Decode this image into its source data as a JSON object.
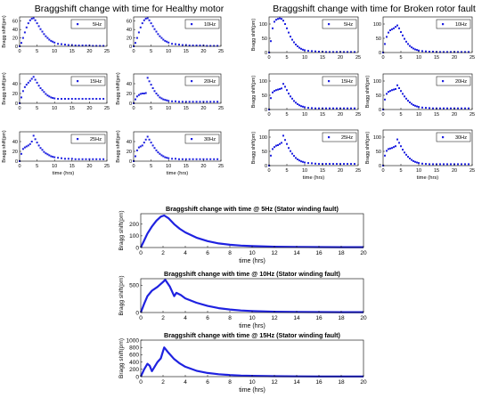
{
  "colors": {
    "series": "#1f22e0",
    "axis": "#000000",
    "legend_border": "#000000",
    "background": "#ffffff"
  },
  "groups": {
    "healthy": {
      "title": "Braggshift change with time for Healthy motor"
    },
    "broken": {
      "title": "Braggshift change with time for Broken rotor fault"
    }
  },
  "chart_data": [
    {
      "type": "scatter",
      "group": "healthy",
      "legend": "5Hz",
      "ylabel": "Bragg shift(pm)",
      "xlabel": "",
      "xlim": [
        0,
        25
      ],
      "ylim": [
        0,
        70
      ],
      "xticks": [
        0,
        5,
        10,
        15,
        20,
        25
      ],
      "yticks": [
        0,
        20,
        40,
        60
      ],
      "x": [
        0,
        0.5,
        1,
        1.5,
        2,
        2.5,
        3,
        3.5,
        4,
        4.5,
        5,
        5.5,
        6,
        6.5,
        7,
        7.5,
        8,
        8.5,
        9,
        9.5,
        10,
        11,
        12,
        13,
        14,
        15,
        16,
        17,
        18,
        19,
        20,
        21,
        22,
        23,
        24
      ],
      "y": [
        0,
        8,
        20,
        33,
        45,
        55,
        62,
        66,
        67,
        62,
        55,
        48,
        41,
        35,
        29,
        24,
        20,
        16,
        13,
        11,
        9,
        6,
        5,
        4,
        3,
        3,
        2,
        2,
        2,
        2,
        2,
        1,
        1,
        1,
        1
      ]
    },
    {
      "type": "scatter",
      "group": "healthy",
      "legend": "10Hz",
      "ylabel": "",
      "xlabel": "",
      "xlim": [
        0,
        25
      ],
      "ylim": [
        0,
        70
      ],
      "xticks": [
        0,
        5,
        10,
        15,
        20,
        25
      ],
      "yticks": [
        0,
        20,
        40,
        60
      ],
      "x": [
        0,
        0.5,
        1,
        1.5,
        2,
        2.5,
        3,
        3.5,
        4,
        4.5,
        5,
        5.5,
        6,
        6.5,
        7,
        7.5,
        8,
        8.5,
        9,
        9.5,
        10,
        11,
        12,
        13,
        14,
        15,
        16,
        17,
        18,
        19,
        20,
        21,
        22,
        23,
        24
      ],
      "y": [
        0,
        8,
        20,
        33,
        45,
        55,
        62,
        66,
        67,
        62,
        55,
        48,
        41,
        35,
        29,
        24,
        20,
        16,
        13,
        11,
        9,
        6,
        5,
        4,
        3,
        3,
        2,
        2,
        2,
        2,
        2,
        1,
        1,
        1,
        1
      ]
    },
    {
      "type": "scatter",
      "group": "healthy",
      "legend": "15Hz",
      "ylabel": "Bragg shift(pm)",
      "xlabel": "",
      "xlim": [
        0,
        25
      ],
      "ylim": [
        0,
        60
      ],
      "xticks": [
        0,
        5,
        10,
        15,
        20,
        25
      ],
      "yticks": [
        0,
        20,
        40
      ],
      "x": [
        0,
        0.5,
        1,
        1.5,
        2,
        2.5,
        3,
        3.5,
        4,
        4.5,
        5,
        5.5,
        6,
        6.5,
        7,
        7.5,
        8,
        8.5,
        9,
        9.5,
        10,
        11,
        12,
        13,
        14,
        15,
        16,
        17,
        18,
        19,
        20,
        21,
        22,
        23,
        24
      ],
      "y": [
        0,
        12,
        25,
        33,
        38,
        42,
        46,
        50,
        54,
        48,
        42,
        36,
        31,
        27,
        23,
        19,
        16,
        14,
        12,
        11,
        10,
        9,
        9,
        9,
        9,
        9,
        9,
        9,
        9,
        9,
        9,
        9,
        9,
        9,
        9
      ]
    },
    {
      "type": "scatter",
      "group": "healthy",
      "legend": "20Hz",
      "ylabel": "Bragg shift(pm)",
      "xlabel": "",
      "xlim": [
        0,
        25
      ],
      "ylim": [
        0,
        60
      ],
      "xticks": [
        0,
        5,
        10,
        15,
        20,
        25
      ],
      "yticks": [
        0,
        20,
        40
      ],
      "x": [
        0,
        0.5,
        1,
        1.5,
        2,
        2.5,
        3,
        3.5,
        4,
        4.5,
        5,
        5.5,
        6,
        6.5,
        7,
        7.5,
        8,
        8.5,
        9,
        9.5,
        10,
        11,
        12,
        13,
        14,
        15,
        16,
        17,
        18,
        19,
        20,
        21,
        22,
        23,
        24
      ],
      "y": [
        0,
        8,
        14,
        17,
        19,
        20,
        20,
        21,
        52,
        45,
        38,
        31,
        25,
        20,
        16,
        12,
        10,
        8,
        7,
        6,
        5,
        4,
        4,
        3,
        3,
        3,
        3,
        3,
        3,
        3,
        3,
        3,
        3,
        3,
        3
      ]
    },
    {
      "type": "scatter",
      "group": "healthy",
      "legend": "25Hz",
      "ylabel": "Bragg shift(pm)",
      "xlabel": "time (hrs)",
      "xlim": [
        0,
        25
      ],
      "ylim": [
        0,
        60
      ],
      "xticks": [
        0,
        5,
        10,
        15,
        20,
        25
      ],
      "yticks": [
        0,
        20,
        40
      ],
      "x": [
        0,
        0.5,
        1,
        1.5,
        2,
        2.5,
        3,
        3.5,
        4,
        4.5,
        5,
        5.5,
        6,
        6.5,
        7,
        7.5,
        8,
        8.5,
        9,
        9.5,
        10,
        11,
        12,
        13,
        14,
        15,
        16,
        17,
        18,
        19,
        20,
        21,
        22,
        23,
        24
      ],
      "y": [
        0,
        15,
        25,
        28,
        30,
        32,
        35,
        40,
        52,
        45,
        38,
        32,
        27,
        23,
        19,
        16,
        14,
        12,
        10,
        9,
        8,
        7,
        6,
        5,
        5,
        5,
        4,
        4,
        4,
        4,
        4,
        4,
        4,
        4,
        4
      ]
    },
    {
      "type": "scatter",
      "group": "healthy",
      "legend": "30Hz",
      "ylabel": "Bragg shift(pm)",
      "xlabel": "time (hrs)",
      "xlim": [
        0,
        25
      ],
      "ylim": [
        0,
        60
      ],
      "xticks": [
        0,
        5,
        10,
        15,
        20,
        25
      ],
      "yticks": [
        0,
        20,
        40
      ],
      "x": [
        0,
        0.5,
        1,
        1.5,
        2,
        2.5,
        3,
        3.5,
        4,
        4.5,
        5,
        5.5,
        6,
        6.5,
        7,
        7.5,
        8,
        8.5,
        9,
        9.5,
        10,
        11,
        12,
        13,
        14,
        15,
        16,
        17,
        18,
        19,
        20,
        21,
        22,
        23,
        24
      ],
      "y": [
        0,
        10,
        22,
        28,
        30,
        32,
        38,
        44,
        50,
        44,
        38,
        32,
        27,
        22,
        18,
        15,
        12,
        10,
        8,
        7,
        6,
        5,
        5,
        4,
        4,
        4,
        4,
        4,
        4,
        4,
        4,
        4,
        4,
        4,
        4
      ]
    },
    {
      "type": "scatter",
      "group": "broken",
      "legend": "5Hz",
      "ylabel": "Bragg shift(pm)",
      "xlabel": "",
      "xlim": [
        0,
        25
      ],
      "ylim": [
        0,
        125
      ],
      "xticks": [
        0,
        5,
        10,
        15,
        20,
        25
      ],
      "yticks": [
        0,
        50,
        100
      ],
      "x": [
        0,
        0.5,
        1,
        1.5,
        2,
        2.5,
        3,
        3.5,
        4,
        4.5,
        5,
        5.5,
        6,
        6.5,
        7,
        7.5,
        8,
        8.5,
        9,
        9.5,
        10,
        11,
        12,
        13,
        14,
        15,
        16,
        17,
        18,
        19,
        20,
        21,
        22,
        23,
        24
      ],
      "y": [
        0,
        40,
        85,
        108,
        115,
        118,
        120,
        118,
        112,
        100,
        85,
        70,
        56,
        45,
        36,
        28,
        22,
        17,
        13,
        10,
        8,
        6,
        5,
        4,
        3,
        3,
        2,
        2,
        2,
        2,
        2,
        2,
        2,
        2,
        2
      ]
    },
    {
      "type": "scatter",
      "group": "broken",
      "legend": "10Hz",
      "ylabel": "",
      "xlabel": "",
      "xlim": [
        0,
        25
      ],
      "ylim": [
        0,
        125
      ],
      "xticks": [
        0,
        5,
        10,
        15,
        20,
        25
      ],
      "yticks": [
        0,
        50,
        100
      ],
      "x": [
        0,
        0.5,
        1,
        1.5,
        2,
        2.5,
        3,
        3.5,
        4,
        4.5,
        5,
        5.5,
        6,
        6.5,
        7,
        7.5,
        8,
        8.5,
        9,
        9.5,
        10,
        11,
        12,
        13,
        14,
        15,
        16,
        17,
        18,
        19,
        20,
        21,
        22,
        23,
        24
      ],
      "y": [
        0,
        30,
        55,
        70,
        78,
        82,
        85,
        90,
        95,
        85,
        72,
        60,
        48,
        38,
        30,
        23,
        18,
        14,
        11,
        9,
        7,
        5,
        4,
        3,
        3,
        2,
        2,
        2,
        2,
        2,
        2,
        2,
        2,
        2,
        2
      ]
    },
    {
      "type": "scatter",
      "group": "broken",
      "legend": "15Hz",
      "ylabel": "Bragg shift(pm)",
      "xlabel": "",
      "xlim": [
        0,
        25
      ],
      "ylim": [
        0,
        125
      ],
      "xticks": [
        0,
        5,
        10,
        15,
        20,
        25
      ],
      "yticks": [
        0,
        50,
        100
      ],
      "x": [
        0,
        0.5,
        1,
        1.5,
        2,
        2.5,
        3,
        3.5,
        4,
        4.5,
        5,
        5.5,
        6,
        6.5,
        7,
        7.5,
        8,
        8.5,
        9,
        9.5,
        10,
        11,
        12,
        13,
        14,
        15,
        16,
        17,
        18,
        19,
        20,
        21,
        22,
        23,
        24
      ],
      "y": [
        0,
        40,
        60,
        65,
        68,
        70,
        72,
        74,
        90,
        80,
        68,
        56,
        46,
        38,
        30,
        24,
        19,
        15,
        12,
        10,
        8,
        6,
        5,
        4,
        4,
        4,
        4,
        4,
        4,
        4,
        4,
        4,
        4,
        4,
        4
      ]
    },
    {
      "type": "scatter",
      "group": "broken",
      "legend": "20Hz",
      "ylabel": "Bragg shift(pm)",
      "xlabel": "",
      "xlim": [
        0,
        25
      ],
      "ylim": [
        0,
        125
      ],
      "xticks": [
        0,
        5,
        10,
        15,
        20,
        25
      ],
      "yticks": [
        0,
        50,
        100
      ],
      "x": [
        0,
        0.5,
        1,
        1.5,
        2,
        2.5,
        3,
        3.5,
        4,
        4.5,
        5,
        5.5,
        6,
        6.5,
        7,
        7.5,
        8,
        8.5,
        9,
        9.5,
        10,
        11,
        12,
        13,
        14,
        15,
        16,
        17,
        18,
        19,
        20,
        21,
        22,
        23,
        24
      ],
      "y": [
        0,
        35,
        55,
        62,
        65,
        68,
        70,
        72,
        85,
        75,
        65,
        55,
        46,
        38,
        31,
        25,
        20,
        16,
        13,
        11,
        9,
        7,
        6,
        5,
        4,
        4,
        4,
        4,
        4,
        4,
        4,
        4,
        4,
        4,
        4
      ]
    },
    {
      "type": "scatter",
      "group": "broken",
      "legend": "25Hz",
      "ylabel": "Bragg shift(pm)",
      "xlabel": "time (hrs)",
      "xlim": [
        0,
        25
      ],
      "ylim": [
        0,
        125
      ],
      "xticks": [
        0,
        5,
        10,
        15,
        20,
        25
      ],
      "yticks": [
        0,
        50,
        100
      ],
      "x": [
        0,
        0.5,
        1,
        1.5,
        2,
        2.5,
        3,
        3.5,
        4,
        4.5,
        5,
        5.5,
        6,
        6.5,
        7,
        7.5,
        8,
        8.5,
        9,
        9.5,
        10,
        11,
        12,
        13,
        14,
        15,
        16,
        17,
        18,
        19,
        20,
        21,
        22,
        23,
        24
      ],
      "y": [
        0,
        35,
        58,
        65,
        70,
        72,
        76,
        80,
        105,
        90,
        76,
        62,
        51,
        42,
        34,
        27,
        22,
        18,
        15,
        13,
        11,
        9,
        8,
        7,
        6,
        6,
        6,
        6,
        6,
        6,
        6,
        6,
        6,
        6,
        6
      ]
    },
    {
      "type": "scatter",
      "group": "broken",
      "legend": "30Hz",
      "ylabel": "Bragg shift(pm)",
      "xlabel": "time (hrs)",
      "xlim": [
        0,
        25
      ],
      "ylim": [
        0,
        125
      ],
      "xticks": [
        0,
        5,
        10,
        15,
        20,
        25
      ],
      "yticks": [
        0,
        50,
        100
      ],
      "x": [
        0,
        0.5,
        1,
        1.5,
        2,
        2.5,
        3,
        3.5,
        4,
        4.5,
        5,
        5.5,
        6,
        6.5,
        7,
        7.5,
        8,
        8.5,
        9,
        9.5,
        10,
        11,
        12,
        13,
        14,
        15,
        16,
        17,
        18,
        19,
        20,
        21,
        22,
        23,
        24
      ],
      "y": [
        0,
        35,
        52,
        58,
        60,
        62,
        65,
        68,
        92,
        80,
        68,
        56,
        46,
        38,
        31,
        25,
        20,
        16,
        13,
        11,
        9,
        7,
        6,
        5,
        5,
        5,
        5,
        5,
        5,
        5,
        5,
        5,
        5,
        5,
        5
      ]
    },
    {
      "type": "line",
      "group": "stator",
      "title": "Braggshift change with time @ 5Hz (Stator winding fault)",
      "ylabel": "Bragg shift(pm)",
      "xlabel": "time (hrs)",
      "xlim": [
        0,
        20
      ],
      "ylim": [
        0,
        290
      ],
      "xticks": [
        0,
        2,
        4,
        6,
        8,
        10,
        12,
        14,
        16,
        18,
        20
      ],
      "yticks": [
        0,
        100,
        200
      ],
      "x": [
        0,
        0.3,
        0.6,
        1,
        1.4,
        1.8,
        2.1,
        2.5,
        3,
        3.5,
        4,
        5,
        6,
        7,
        8,
        9,
        10,
        12,
        14,
        16,
        18,
        20
      ],
      "y": [
        0,
        60,
        120,
        180,
        230,
        265,
        275,
        250,
        200,
        160,
        130,
        85,
        55,
        35,
        24,
        17,
        12,
        7,
        5,
        4,
        3,
        3
      ]
    },
    {
      "type": "line",
      "group": "stator",
      "title": "Braggshift change with time @ 10Hz (Stator winding fault)",
      "ylabel": "Bragg shift(pm)",
      "xlabel": "time (hrs)",
      "xlim": [
        0,
        20
      ],
      "ylim": [
        0,
        620
      ],
      "xticks": [
        0,
        2,
        4,
        6,
        8,
        10,
        12,
        14,
        16,
        18,
        20
      ],
      "yticks": [
        0,
        500
      ],
      "x": [
        0,
        0.3,
        0.6,
        1,
        1.5,
        2,
        2.2,
        2.6,
        3,
        3.2,
        3.6,
        4,
        5,
        6,
        7,
        8,
        9,
        10,
        12,
        14,
        16,
        18,
        20
      ],
      "y": [
        0,
        160,
        300,
        400,
        470,
        560,
        600,
        480,
        300,
        360,
        320,
        260,
        180,
        120,
        80,
        55,
        38,
        27,
        15,
        10,
        8,
        7,
        6
      ]
    },
    {
      "type": "line",
      "group": "stator",
      "title": "Braggshift change with time @ 15Hz (Stator winding fault)",
      "ylabel": "Bragg shift(pm)",
      "xlabel": "time (hrs)",
      "xlim": [
        0,
        20
      ],
      "ylim": [
        0,
        1000
      ],
      "xticks": [
        0,
        2,
        4,
        6,
        8,
        10,
        12,
        14,
        16,
        18,
        20
      ],
      "yticks": [
        0,
        200,
        400,
        600,
        800,
        1000
      ],
      "x": [
        0,
        0.3,
        0.6,
        0.8,
        1,
        1.2,
        1.5,
        1.8,
        2.1,
        2.5,
        3,
        3.5,
        4,
        5,
        6,
        7,
        8,
        9,
        10,
        12,
        14,
        16,
        18,
        20
      ],
      "y": [
        0,
        200,
        350,
        300,
        150,
        250,
        400,
        500,
        800,
        650,
        480,
        360,
        270,
        160,
        100,
        65,
        45,
        30,
        22,
        12,
        8,
        6,
        5,
        5
      ]
    }
  ]
}
